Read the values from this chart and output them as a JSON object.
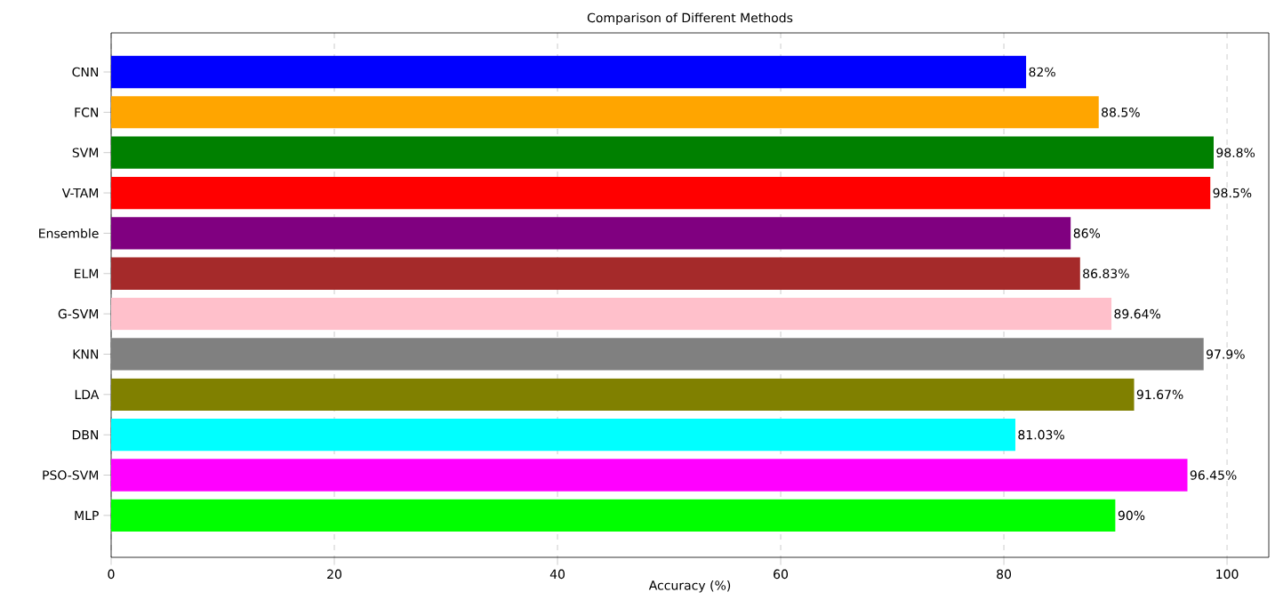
{
  "chart_data": {
    "type": "bar",
    "orientation": "horizontal",
    "title": "Comparison of Different Methods",
    "xlabel": "Accuracy (%)",
    "categories": [
      "CNN",
      "FCN",
      "SVM",
      "V-TAM",
      "Ensemble",
      "ELM",
      "G-SVM",
      "KNN",
      "LDA",
      "DBN",
      "PSO-SVM",
      "MLP"
    ],
    "values": [
      82,
      88.5,
      98.8,
      98.5,
      86,
      86.83,
      89.64,
      97.9,
      91.67,
      81.03,
      96.45,
      90
    ],
    "value_labels": [
      "82%",
      "88.5%",
      "98.8%",
      "98.5%",
      "86%",
      "86.83%",
      "89.64%",
      "97.9%",
      "91.67%",
      "81.03%",
      "96.45%",
      "90%"
    ],
    "colors": [
      "#0000ff",
      "#ffa500",
      "#008000",
      "#ff0000",
      "#800080",
      "#a52a2a",
      "#ffc0cb",
      "#808080",
      "#808000",
      "#00ffff",
      "#ff00ff",
      "#00ff00"
    ],
    "xlim": [
      0,
      103.74
    ],
    "xticks": [
      0,
      20,
      40,
      60,
      80,
      100
    ],
    "grid": "x"
  }
}
